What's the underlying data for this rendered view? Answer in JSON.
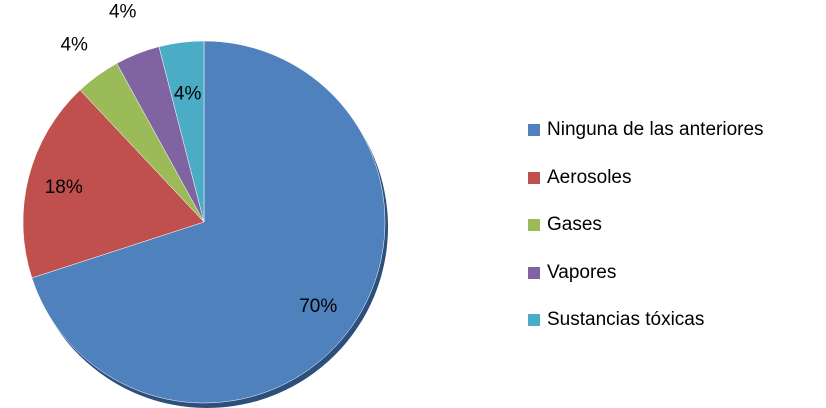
{
  "chart_data": {
    "type": "pie",
    "title": "",
    "legend_position": "right",
    "slices": [
      {
        "label": "Ninguna de las anteriores",
        "value": 70,
        "value_label": "70%",
        "color": "#4F81BD"
      },
      {
        "label": "Aerosoles",
        "value": 18,
        "value_label": "18%",
        "color": "#C0504D"
      },
      {
        "label": "Gases",
        "value": 4,
        "value_label": "4%",
        "color": "#9BBB59"
      },
      {
        "label": "Vapores",
        "value": 4,
        "value_label": "4%",
        "color": "#8064A2"
      },
      {
        "label": "Sustancias tóxicas",
        "value": 4,
        "value_label": "4%",
        "color": "#4BACC6"
      }
    ]
  }
}
